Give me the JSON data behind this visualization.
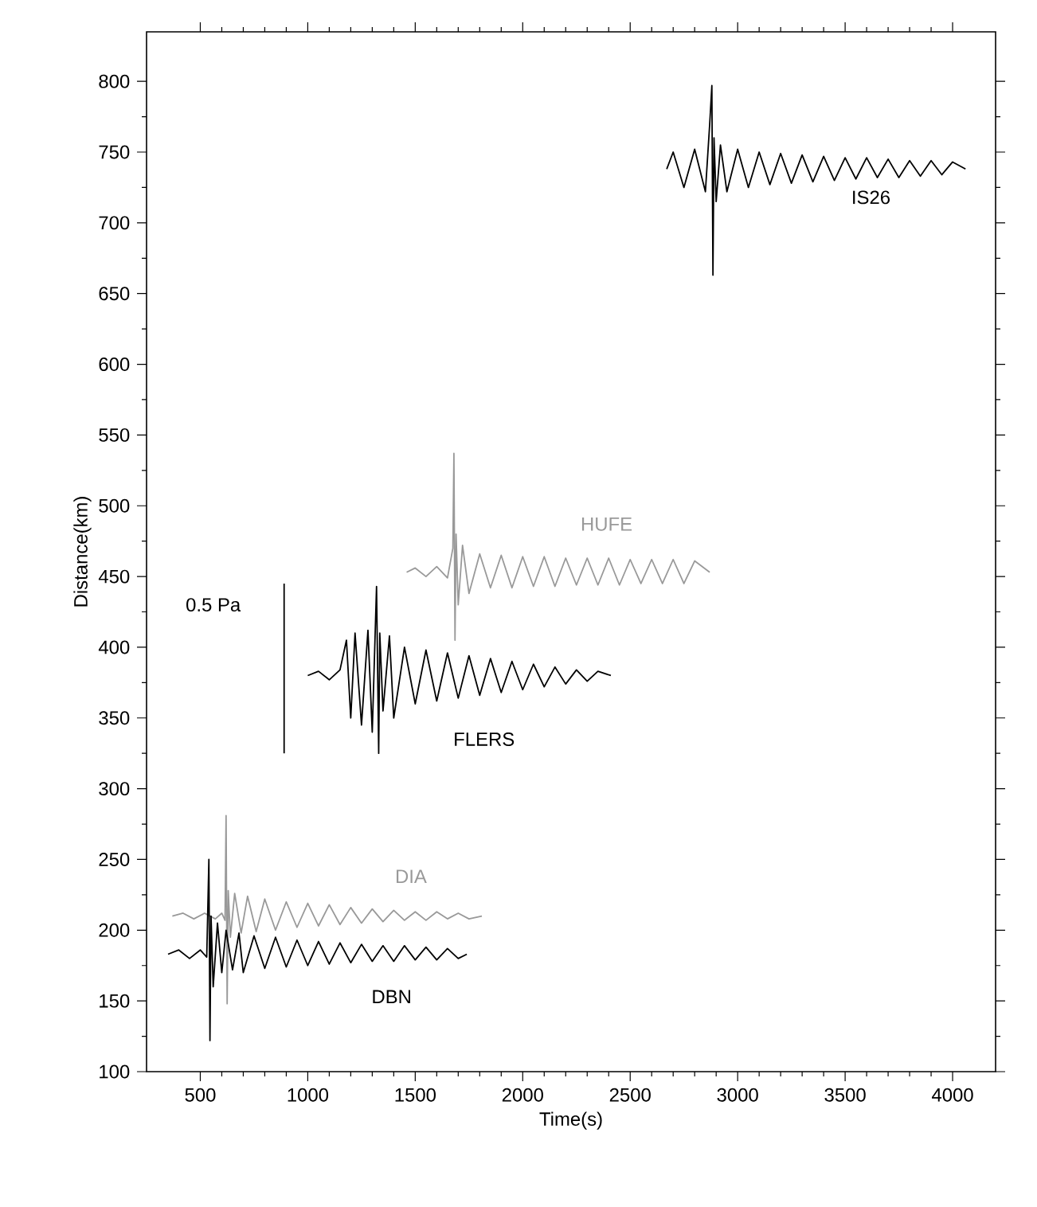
{
  "chart_data": {
    "type": "line",
    "xlabel": "Time(s)",
    "ylabel": "Distance(km)",
    "xlim": [
      250,
      4200
    ],
    "ylim": [
      100,
      835
    ],
    "xticks": [
      500,
      1000,
      1500,
      2000,
      2500,
      3000,
      3500,
      4000
    ],
    "yticks": [
      100,
      150,
      200,
      250,
      300,
      350,
      400,
      450,
      500,
      550,
      600,
      650,
      700,
      750,
      800
    ],
    "marker": "none",
    "grid": false,
    "series": [
      {
        "name": "IS26",
        "color": "#000000",
        "x": [
          2670,
          2700,
          2750,
          2800,
          2850,
          2870,
          2880,
          2885,
          2890,
          2900,
          2920,
          2950,
          3000,
          3050,
          3100,
          3150,
          3200,
          3250,
          3300,
          3350,
          3400,
          3450,
          3500,
          3550,
          3600,
          3650,
          3700,
          3750,
          3800,
          3850,
          3900,
          3950,
          4000,
          4060
        ],
        "values": [
          738,
          750,
          725,
          752,
          722,
          770,
          797,
          663,
          760,
          715,
          755,
          722,
          752,
          725,
          750,
          727,
          749,
          728,
          748,
          729,
          747,
          730,
          746,
          731,
          746,
          732,
          745,
          732,
          744,
          733,
          744,
          734,
          743,
          738
        ]
      },
      {
        "name": "HUFE",
        "color": "#999999",
        "x": [
          1460,
          1500,
          1550,
          1600,
          1650,
          1675,
          1680,
          1685,
          1690,
          1700,
          1720,
          1750,
          1800,
          1850,
          1900,
          1950,
          2000,
          2050,
          2100,
          2150,
          2200,
          2250,
          2300,
          2350,
          2400,
          2450,
          2500,
          2550,
          2600,
          2650,
          2700,
          2750,
          2800,
          2870
        ],
        "values": [
          453,
          456,
          450,
          457,
          449,
          470,
          537,
          405,
          480,
          430,
          472,
          438,
          466,
          442,
          465,
          442,
          464,
          443,
          464,
          443,
          463,
          444,
          463,
          444,
          463,
          444,
          462,
          445,
          462,
          445,
          462,
          445,
          461,
          453
        ]
      },
      {
        "name": "FLERS",
        "color": "#000000",
        "x": [
          1000,
          1050,
          1100,
          1150,
          1180,
          1200,
          1220,
          1250,
          1280,
          1300,
          1320,
          1330,
          1335,
          1350,
          1380,
          1400,
          1450,
          1500,
          1550,
          1600,
          1650,
          1700,
          1750,
          1800,
          1850,
          1900,
          1950,
          2000,
          2050,
          2100,
          2150,
          2200,
          2250,
          2300,
          2350,
          2410
        ],
        "values": [
          380,
          383,
          377,
          384,
          405,
          350,
          410,
          345,
          412,
          340,
          443,
          325,
          410,
          355,
          408,
          350,
          400,
          360,
          398,
          362,
          396,
          364,
          394,
          366,
          392,
          368,
          390,
          370,
          388,
          372,
          386,
          374,
          384,
          376,
          383,
          380
        ]
      },
      {
        "name": "DIA",
        "color": "#999999",
        "x": [
          370,
          420,
          470,
          520,
          570,
          600,
          615,
          620,
          625,
          630,
          640,
          660,
          690,
          720,
          760,
          800,
          850,
          900,
          950,
          1000,
          1050,
          1100,
          1150,
          1200,
          1250,
          1300,
          1350,
          1400,
          1450,
          1500,
          1550,
          1600,
          1650,
          1700,
          1750,
          1810
        ],
        "values": [
          210,
          212,
          208,
          212,
          208,
          212,
          207,
          281,
          148,
          228,
          195,
          226,
          198,
          224,
          199,
          222,
          200,
          220,
          202,
          219,
          203,
          218,
          204,
          216,
          205,
          215,
          206,
          214,
          207,
          213,
          207,
          213,
          208,
          212,
          208,
          210
        ]
      },
      {
        "name": "DBN",
        "color": "#000000",
        "x": [
          350,
          400,
          450,
          500,
          530,
          540,
          545,
          550,
          560,
          580,
          600,
          620,
          650,
          680,
          700,
          750,
          800,
          850,
          900,
          950,
          1000,
          1050,
          1100,
          1150,
          1200,
          1250,
          1300,
          1350,
          1400,
          1450,
          1500,
          1550,
          1600,
          1650,
          1700,
          1740
        ],
        "values": [
          183,
          186,
          180,
          186,
          181,
          250,
          122,
          210,
          160,
          205,
          170,
          200,
          172,
          198,
          170,
          196,
          173,
          195,
          174,
          193,
          175,
          192,
          176,
          191,
          177,
          190,
          178,
          189,
          178,
          189,
          179,
          188,
          179,
          187,
          180,
          183
        ]
      },
      {
        "name": "0.5 Pa",
        "color": "#000000",
        "x": [
          890,
          890
        ],
        "values": [
          325,
          445
        ]
      }
    ]
  }
}
